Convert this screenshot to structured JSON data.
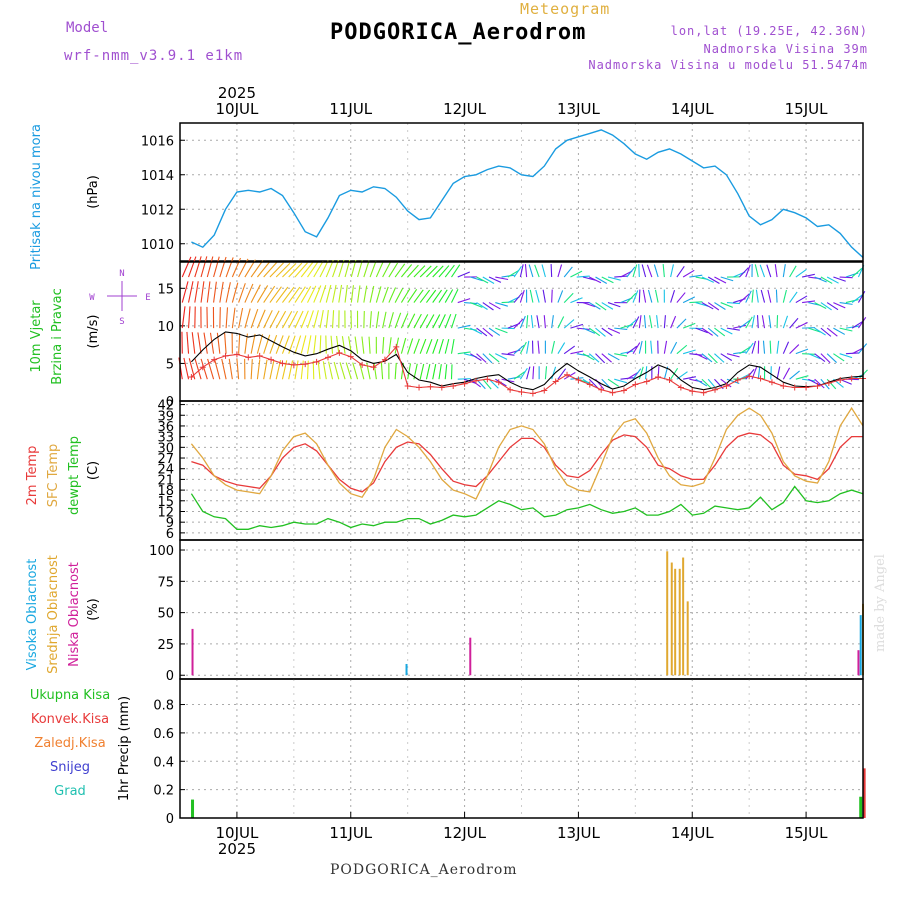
{
  "header": {
    "title": "PODGORICA_Aerodrom",
    "subtitle": "Meteogram",
    "model_label": "Model",
    "model_name": "wrf-nmm_v3.9.1 e1km",
    "info_lines": [
      "lon,lat (19.25E, 42.36N)",
      "Nadmorska Visina 39m",
      "Nadmorska Visina u modelu 51.5474m"
    ],
    "year": "2025",
    "footer": "PODGORICA_Aerodrom",
    "credit": "made by Angel"
  },
  "colors": {
    "pressure": "#1a9be0",
    "temp2m": "#e83a3a",
    "sfc": "#e0a840",
    "dew": "#22c022",
    "high": "#1aa8e0",
    "mid": "#e0a830",
    "low": "#d0209a",
    "total": "#22c022",
    "conv": "#e83a3a",
    "frz": "#f08030",
    "snow": "#4040d0",
    "grad": "#20c0b0",
    "wind_label": "#a040d0"
  },
  "chart_data": [
    {
      "type": "line",
      "name": "pressure",
      "ylabels": [
        {
          "text": "Pritisak na nivou mora",
          "color": "#1a9be0"
        }
      ],
      "unit": "(hPa)",
      "x": [
        9.6,
        9.7,
        9.8,
        9.9,
        10.0,
        10.1,
        10.2,
        10.3,
        10.4,
        10.5,
        10.6,
        10.7,
        10.8,
        10.9,
        11.0,
        11.1,
        11.2,
        11.3,
        11.4,
        11.5,
        11.6,
        11.7,
        11.8,
        11.9,
        12.0,
        12.1,
        12.2,
        12.3,
        12.4,
        12.5,
        12.6,
        12.7,
        12.8,
        12.9,
        13.0,
        13.1,
        13.2,
        13.3,
        13.4,
        13.5,
        13.6,
        13.7,
        13.8,
        13.9,
        14.0,
        14.1,
        14.2,
        14.3,
        14.4,
        14.5,
        14.6,
        14.7,
        14.8,
        14.9,
        15.0,
        15.1,
        15.2,
        15.3,
        15.4,
        15.5
      ],
      "y": [
        1010.1,
        1009.8,
        1010.5,
        1012.0,
        1013.0,
        1013.1,
        1013.0,
        1013.2,
        1012.8,
        1011.8,
        1010.7,
        1010.4,
        1011.5,
        1012.8,
        1013.1,
        1013.0,
        1013.3,
        1013.2,
        1012.7,
        1011.9,
        1011.4,
        1011.5,
        1012.5,
        1013.5,
        1013.9,
        1014.0,
        1014.3,
        1014.5,
        1014.4,
        1014.0,
        1013.9,
        1014.5,
        1015.5,
        1016.0,
        1016.2,
        1016.4,
        1016.6,
        1016.3,
        1015.8,
        1015.2,
        1014.9,
        1015.3,
        1015.5,
        1015.2,
        1014.8,
        1014.4,
        1014.5,
        1014.0,
        1012.9,
        1011.6,
        1011.1,
        1011.4,
        1012.0,
        1011.8,
        1011.5,
        1011.0,
        1011.1,
        1010.6,
        1009.8,
        1009.2
      ],
      "ylim": [
        1009,
        1017
      ],
      "yticks": [
        1010,
        1012,
        1014,
        1016
      ],
      "xticks": [
        10,
        11,
        12,
        13,
        14,
        15
      ],
      "grid": true
    },
    {
      "type": "line",
      "name": "wind",
      "ylabels": [
        {
          "text": "10m Vjetar",
          "color": "#22c022"
        },
        {
          "text": "Brzina i Pravac",
          "color": "#22c022"
        }
      ],
      "unit": "(m/s)",
      "compass": [
        "N",
        "E",
        "S",
        "W"
      ],
      "x": [
        9.6,
        9.7,
        9.8,
        9.9,
        10.0,
        10.1,
        10.2,
        10.3,
        10.4,
        10.5,
        10.6,
        10.7,
        10.8,
        10.9,
        11.0,
        11.1,
        11.2,
        11.3,
        11.4,
        11.5,
        11.6,
        11.7,
        11.8,
        11.9,
        12.0,
        12.1,
        12.2,
        12.3,
        12.4,
        12.5,
        12.6,
        12.7,
        12.8,
        12.9,
        13.0,
        13.1,
        13.2,
        13.3,
        13.4,
        13.5,
        13.6,
        13.7,
        13.8,
        13.9,
        14.0,
        14.1,
        14.2,
        14.3,
        14.4,
        14.5,
        14.6,
        14.7,
        14.8,
        14.9,
        15.0,
        15.1,
        15.2,
        15.3,
        15.4,
        15.5
      ],
      "series": [
        {
          "name": "speed",
          "y": [
            5.2,
            6.8,
            8.2,
            9.2,
            9.0,
            8.5,
            8.8,
            8.0,
            7.2,
            6.5,
            6.0,
            6.3,
            6.9,
            7.4,
            6.7,
            5.5,
            5.0,
            5.3,
            6.2,
            3.8,
            2.8,
            2.5,
            2.0,
            2.3,
            2.5,
            3.0,
            3.3,
            3.5,
            2.5,
            1.8,
            1.5,
            2.2,
            3.8,
            5.0,
            4.0,
            3.2,
            2.3,
            1.6,
            2.0,
            3.0,
            3.8,
            4.8,
            4.2,
            2.8,
            1.8,
            1.5,
            1.8,
            2.3,
            3.8,
            4.8,
            4.5,
            3.5,
            2.5,
            2.0,
            1.9,
            2.0,
            2.5,
            3.0,
            3.2,
            3.3
          ]
        },
        {
          "name": "gust",
          "y": [
            3.2,
            4.5,
            5.5,
            6.0,
            6.2,
            5.8,
            6.0,
            5.5,
            5.0,
            4.8,
            4.9,
            5.2,
            5.8,
            6.4,
            5.9,
            4.8,
            4.5,
            5.5,
            7.2,
            2.0,
            1.8,
            1.9,
            1.8,
            2.0,
            2.3,
            2.7,
            2.9,
            2.5,
            1.5,
            1.2,
            1.0,
            1.4,
            2.6,
            3.5,
            2.8,
            2.2,
            1.5,
            1.1,
            1.4,
            2.2,
            2.6,
            3.2,
            2.8,
            1.8,
            1.3,
            1.1,
            1.5,
            2.0,
            2.8,
            3.3,
            3.0,
            2.5,
            2.0,
            1.8,
            1.8,
            2.0,
            2.4,
            2.8,
            3.0,
            3.0
          ]
        }
      ],
      "ylim": [
        0,
        18.5
      ],
      "yticks": [
        0,
        5,
        10,
        15
      ],
      "xticks": [
        10,
        11,
        12,
        13,
        14,
        15
      ],
      "grid": true
    },
    {
      "type": "line",
      "name": "temperature",
      "ylabels": [
        {
          "text": "2m Temp",
          "color": "#e83a3a"
        },
        {
          "text": "SFC Temp",
          "color": "#e0a840"
        },
        {
          "text": "dewpt Temp",
          "color": "#22c022"
        }
      ],
      "unit": "(C)",
      "x": [
        9.6,
        9.7,
        9.8,
        9.9,
        10.0,
        10.1,
        10.2,
        10.3,
        10.4,
        10.5,
        10.6,
        10.7,
        10.8,
        10.9,
        11.0,
        11.1,
        11.2,
        11.3,
        11.4,
        11.5,
        11.6,
        11.7,
        11.8,
        11.9,
        12.0,
        12.1,
        12.2,
        12.3,
        12.4,
        12.5,
        12.6,
        12.7,
        12.8,
        12.9,
        13.0,
        13.1,
        13.2,
        13.3,
        13.4,
        13.5,
        13.6,
        13.7,
        13.8,
        13.9,
        14.0,
        14.1,
        14.2,
        14.3,
        14.4,
        14.5,
        14.6,
        14.7,
        14.8,
        14.9,
        15.0,
        15.1,
        15.2,
        15.3,
        15.4,
        15.5
      ],
      "series": [
        {
          "name": "2m",
          "y": [
            26,
            25,
            22,
            20.5,
            19.5,
            19,
            18.5,
            22,
            27,
            30,
            31,
            29,
            25,
            21,
            18.5,
            17.5,
            20,
            26,
            30,
            31.5,
            31,
            28,
            24,
            20.5,
            19.5,
            19,
            22,
            26,
            30,
            32.5,
            32.5,
            30,
            25,
            22,
            21.5,
            23.5,
            28,
            32,
            33.5,
            33,
            30,
            25,
            24,
            22,
            21,
            21,
            25,
            30,
            33,
            34,
            33.5,
            31,
            25,
            22.5,
            22,
            21,
            24,
            30,
            33,
            33
          ]
        },
        {
          "name": "sfc",
          "y": [
            31,
            27,
            22,
            19.5,
            18,
            17.5,
            17,
            22,
            29,
            33,
            34,
            31,
            25,
            20,
            17,
            16,
            21,
            30,
            35,
            33,
            30,
            26,
            21,
            18,
            17,
            15.5,
            22,
            30,
            35,
            36,
            35,
            31,
            24,
            19.5,
            18,
            17.5,
            25,
            33,
            37,
            38,
            34,
            27,
            22,
            19.5,
            19,
            20,
            27,
            35,
            39,
            41,
            39,
            34,
            26,
            22,
            20.5,
            20,
            26,
            36,
            41,
            36
          ]
        },
        {
          "name": "dew",
          "y": [
            17,
            12,
            10.5,
            10,
            7,
            7,
            8,
            7.5,
            8,
            9,
            8.5,
            8.5,
            10,
            9,
            7.5,
            8.5,
            8,
            9,
            9,
            10,
            10,
            8.5,
            9.5,
            11,
            10.5,
            11,
            13,
            15,
            14,
            12.5,
            13,
            10.5,
            11,
            12.5,
            13,
            14,
            12.5,
            11.5,
            12,
            13,
            11,
            11,
            12,
            14,
            11,
            11.5,
            13.5,
            13,
            12.5,
            13,
            16,
            12.5,
            14.5,
            19,
            15,
            14.5,
            15,
            17,
            18,
            17
          ]
        }
      ],
      "ylim": [
        4,
        43
      ],
      "yticks": [
        6,
        9,
        12,
        15,
        18,
        21,
        24,
        27,
        30,
        33,
        36,
        39,
        42
      ],
      "xticks": [
        10,
        11,
        12,
        13,
        14,
        15
      ],
      "grid": true
    },
    {
      "type": "bar",
      "name": "clouds",
      "ylabels": [
        {
          "text": "Visoka Oblacnost",
          "color": "#1aa8e0"
        },
        {
          "text": "Srednja Oblacnost",
          "color": "#e0a830"
        },
        {
          "text": "Niska Oblacnost",
          "color": "#d0209a"
        }
      ],
      "unit": "(%)",
      "series": [
        {
          "name": "low",
          "bars": [
            [
              9.61,
              37
            ],
            [
              12.05,
              30
            ],
            [
              15.46,
              20
            ]
          ]
        },
        {
          "name": "mid",
          "bars": [
            [
              13.78,
              99
            ],
            [
              13.82,
              90
            ],
            [
              13.85,
              85
            ],
            [
              13.89,
              85
            ],
            [
              13.92,
              94
            ],
            [
              13.96,
              59
            ],
            [
              15.5,
              57
            ]
          ]
        },
        {
          "name": "high",
          "bars": [
            [
              11.49,
              9
            ],
            [
              15.48,
              48
            ]
          ]
        }
      ],
      "ylim": [
        -3,
        108
      ],
      "yticks": [
        0,
        25,
        50,
        75,
        100
      ],
      "xticks": [
        10,
        11,
        12,
        13,
        14,
        15
      ],
      "grid": true
    },
    {
      "type": "bar",
      "name": "precip",
      "ylabels": [
        {
          "text": "Ukupna Kisa",
          "color": "#22c022"
        },
        {
          "text": "Konvek.Kisa",
          "color": "#e83a3a"
        },
        {
          "text": "Zaledj.Kisa",
          "color": "#f08030"
        },
        {
          "text": "Snijeg",
          "color": "#4040d0"
        },
        {
          "text": "Grad",
          "color": "#20c0b0"
        }
      ],
      "unit": "1hr Precip (mm)",
      "series": [
        {
          "name": "total",
          "bars": [
            [
              9.61,
              0.13
            ],
            [
              15.48,
              0.15
            ]
          ]
        },
        {
          "name": "conv",
          "bars": [
            [
              15.51,
              0.35
            ]
          ]
        }
      ],
      "ylim": [
        0,
        0.98
      ],
      "yticks": [
        0,
        0.2,
        0.4,
        0.6,
        0.8
      ],
      "xtick_labels": [
        "10JUL",
        "11JUL",
        "12JUL",
        "13JUL",
        "14JUL",
        "15JUL"
      ],
      "xticks": [
        10,
        11,
        12,
        13,
        14,
        15
      ],
      "grid": true
    }
  ]
}
